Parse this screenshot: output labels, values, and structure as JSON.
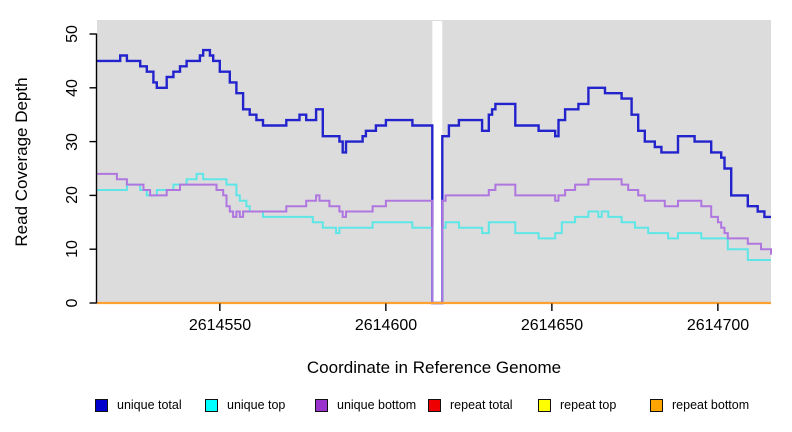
{
  "figure": {
    "background": "#ffffff"
  },
  "chart_data": {
    "type": "line",
    "subtype": "step",
    "title": "",
    "xlabel": "Coordinate in Reference Genome",
    "ylabel": "Read Coverage Depth",
    "x_range": [
      2614513,
      2614716
    ],
    "y_range": [
      0,
      52.5
    ],
    "x_ticks": [
      2614550,
      2614600,
      2614650,
      2614700
    ],
    "x_tick_labels": [
      "2614550",
      "2614600",
      "2614650",
      "2614700"
    ],
    "y_ticks": [
      0,
      10,
      20,
      30,
      40,
      50
    ],
    "y_tick_labels": [
      "0",
      "10",
      "20",
      "30",
      "40",
      "50"
    ],
    "grid": false,
    "plot_background": "#dcdcdc",
    "gap_fill": "#ffffff",
    "axis_color": "#000000",
    "no_data_gap": {
      "x_start": 2614614,
      "x_end": 2614617
    },
    "legend_position": "bottom",
    "series": [
      {
        "name": "unique total",
        "line_color": "#2323cd",
        "legend_color": "#0000cc",
        "line_width": 2.4,
        "points": [
          [
            2614513,
            45
          ],
          [
            2614520,
            46
          ],
          [
            2614522,
            45
          ],
          [
            2614526,
            44
          ],
          [
            2614528,
            43
          ],
          [
            2614530,
            41
          ],
          [
            2614531,
            40
          ],
          [
            2614534,
            42
          ],
          [
            2614536,
            43
          ],
          [
            2614538,
            44
          ],
          [
            2614540,
            45
          ],
          [
            2614544,
            46
          ],
          [
            2614545,
            47
          ],
          [
            2614547,
            46
          ],
          [
            2614548,
            45
          ],
          [
            2614550,
            43
          ],
          [
            2614553,
            41
          ],
          [
            2614555,
            39
          ],
          [
            2614557,
            36
          ],
          [
            2614559,
            35
          ],
          [
            2614561,
            34
          ],
          [
            2614563,
            33
          ],
          [
            2614570,
            34
          ],
          [
            2614574,
            35
          ],
          [
            2614576,
            34
          ],
          [
            2614579,
            36
          ],
          [
            2614581,
            31
          ],
          [
            2614586,
            30
          ],
          [
            2614587,
            28
          ],
          [
            2614588,
            30
          ],
          [
            2614593,
            31
          ],
          [
            2614594,
            32
          ],
          [
            2614597,
            33
          ],
          [
            2614600,
            34
          ],
          [
            2614608,
            33
          ],
          [
            2614614,
            0
          ],
          [
            2614617,
            31
          ],
          [
            2614619,
            33
          ],
          [
            2614622,
            34
          ],
          [
            2614629,
            32
          ],
          [
            2614631,
            35
          ],
          [
            2614632,
            36
          ],
          [
            2614633,
            37
          ],
          [
            2614639,
            33
          ],
          [
            2614646,
            32
          ],
          [
            2614651,
            31
          ],
          [
            2614652,
            34
          ],
          [
            2614654,
            36
          ],
          [
            2614658,
            37
          ],
          [
            2614661,
            40
          ],
          [
            2614666,
            39
          ],
          [
            2614671,
            38
          ],
          [
            2614674,
            35
          ],
          [
            2614676,
            32
          ],
          [
            2614678,
            30
          ],
          [
            2614681,
            29
          ],
          [
            2614683,
            28
          ],
          [
            2614688,
            31
          ],
          [
            2614693,
            30
          ],
          [
            2614698,
            28
          ],
          [
            2614701,
            27
          ],
          [
            2614702,
            25
          ],
          [
            2614704,
            20
          ],
          [
            2614709,
            18
          ],
          [
            2614712,
            17
          ],
          [
            2614714,
            16
          ],
          [
            2614716,
            16
          ]
        ]
      },
      {
        "name": "unique top",
        "line_color": "#5ee6e6",
        "legend_color": "#00ffff",
        "line_width": 2,
        "points": [
          [
            2614513,
            21
          ],
          [
            2614522,
            22
          ],
          [
            2614526,
            21
          ],
          [
            2614528,
            20
          ],
          [
            2614531,
            21
          ],
          [
            2614536,
            22
          ],
          [
            2614540,
            23
          ],
          [
            2614543,
            24
          ],
          [
            2614545,
            23
          ],
          [
            2614552,
            22
          ],
          [
            2614555,
            20
          ],
          [
            2614556,
            19
          ],
          [
            2614558,
            18
          ],
          [
            2614559,
            17
          ],
          [
            2614563,
            16
          ],
          [
            2614578,
            15
          ],
          [
            2614581,
            14
          ],
          [
            2614585,
            13
          ],
          [
            2614586,
            14
          ],
          [
            2614596,
            15
          ],
          [
            2614608,
            14
          ],
          [
            2614614,
            0
          ],
          [
            2614617,
            14
          ],
          [
            2614618,
            15
          ],
          [
            2614622,
            14
          ],
          [
            2614629,
            13
          ],
          [
            2614631,
            15
          ],
          [
            2614639,
            13
          ],
          [
            2614646,
            12
          ],
          [
            2614651,
            13
          ],
          [
            2614653,
            15
          ],
          [
            2614657,
            16
          ],
          [
            2614661,
            17
          ],
          [
            2614664,
            16
          ],
          [
            2614665,
            17
          ],
          [
            2614667,
            16
          ],
          [
            2614671,
            15
          ],
          [
            2614675,
            14
          ],
          [
            2614679,
            13
          ],
          [
            2614685,
            12
          ],
          [
            2614688,
            13
          ],
          [
            2614695,
            12
          ],
          [
            2614703,
            10
          ],
          [
            2614709,
            8
          ],
          [
            2614716,
            8
          ]
        ]
      },
      {
        "name": "unique bottom",
        "line_color": "#b076e0",
        "legend_color": "#9933cc",
        "line_width": 2,
        "points": [
          [
            2614513,
            24
          ],
          [
            2614519,
            23
          ],
          [
            2614522,
            22
          ],
          [
            2614527,
            21
          ],
          [
            2614529,
            20
          ],
          [
            2614534,
            21
          ],
          [
            2614538,
            22
          ],
          [
            2614549,
            21
          ],
          [
            2614551,
            20
          ],
          [
            2614552,
            18
          ],
          [
            2614553,
            17
          ],
          [
            2614554,
            16
          ],
          [
            2614555,
            17
          ],
          [
            2614556,
            16
          ],
          [
            2614557,
            17
          ],
          [
            2614570,
            18
          ],
          [
            2614576,
            19
          ],
          [
            2614579,
            20
          ],
          [
            2614580,
            19
          ],
          [
            2614583,
            18
          ],
          [
            2614586,
            17
          ],
          [
            2614587,
            16
          ],
          [
            2614588,
            17
          ],
          [
            2614596,
            18
          ],
          [
            2614600,
            19
          ],
          [
            2614614,
            0
          ],
          [
            2614617,
            19
          ],
          [
            2614618,
            20
          ],
          [
            2614631,
            21
          ],
          [
            2614633,
            22
          ],
          [
            2614639,
            20
          ],
          [
            2614651,
            19
          ],
          [
            2614652,
            20
          ],
          [
            2614654,
            21
          ],
          [
            2614657,
            22
          ],
          [
            2614661,
            23
          ],
          [
            2614671,
            22
          ],
          [
            2614673,
            21
          ],
          [
            2614676,
            20
          ],
          [
            2614678,
            19
          ],
          [
            2614684,
            18
          ],
          [
            2614688,
            19
          ],
          [
            2614695,
            18
          ],
          [
            2614698,
            16
          ],
          [
            2614700,
            15
          ],
          [
            2614701,
            14
          ],
          [
            2614702,
            13
          ],
          [
            2614703,
            12
          ],
          [
            2614709,
            11
          ],
          [
            2614713,
            10
          ],
          [
            2614716,
            9
          ]
        ]
      },
      {
        "name": "repeat total",
        "line_color": "#ee0000",
        "legend_color": "#ee0000",
        "line_width": 2,
        "points": [
          [
            2614513,
            0
          ],
          [
            2614716,
            0
          ]
        ]
      },
      {
        "name": "repeat top",
        "line_color": "#ffff00",
        "legend_color": "#ffff00",
        "line_width": 2,
        "points": [
          [
            2614513,
            0
          ],
          [
            2614716,
            0
          ]
        ]
      },
      {
        "name": "repeat bottom",
        "line_color": "#ffa033",
        "legend_color": "#ffa500",
        "line_width": 2.2,
        "points": [
          [
            2614513,
            0
          ],
          [
            2614716,
            0
          ]
        ]
      }
    ]
  }
}
